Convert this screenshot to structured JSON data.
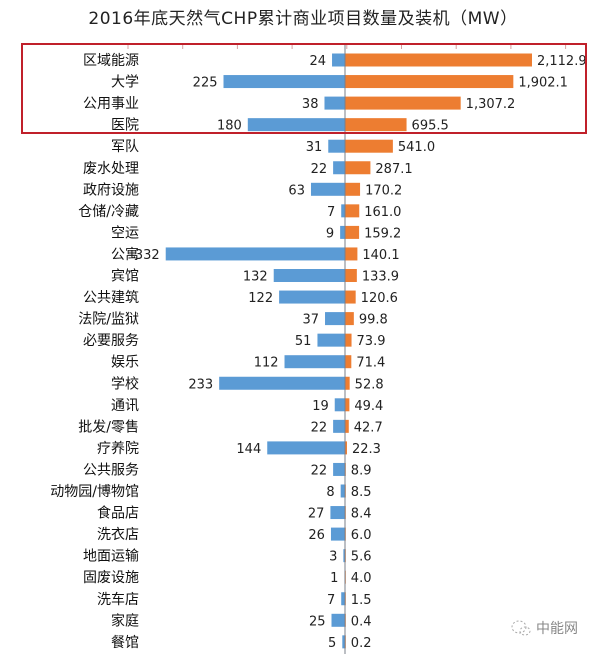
{
  "chart_data": {
    "type": "bar",
    "orientation": "horizontal-diverging",
    "title": "2016年底天然气CHP累计商业项目数量及装机（MW）",
    "categories": [
      "区域能源",
      "大学",
      "公用事业",
      "医院",
      "军队",
      "废水处理",
      "政府设施",
      "仓储/冷藏",
      "空运",
      "公寓",
      "宾馆",
      "公共建筑",
      "法院/监狱",
      "必要服务",
      "娱乐",
      "学校",
      "通讯",
      "批发/零售",
      "疗养院",
      "公共服务",
      "动物园/博物馆",
      "食品店",
      "洗衣店",
      "地面运输",
      "固废设施",
      "洗车店",
      "家庭",
      "餐馆"
    ],
    "series": [
      {
        "side": "left",
        "color": "#5b9bd5",
        "values": [
          24,
          225,
          38,
          180,
          31,
          22,
          63,
          7,
          9,
          332,
          132,
          122,
          37,
          51,
          112,
          233,
          19,
          22,
          144,
          22,
          8,
          27,
          26,
          3,
          1,
          7,
          25,
          5
        ],
        "labels": [
          "24",
          "225",
          "38",
          "180",
          "31",
          "22",
          "63",
          "7",
          "9",
          "332",
          "132",
          "122",
          "37",
          "51",
          "112",
          "233",
          "19",
          "22",
          "144",
          "22",
          "8",
          "27",
          "26",
          "3",
          "1",
          "7",
          "25",
          "5"
        ]
      },
      {
        "side": "right",
        "color": "#ed7d31",
        "values": [
          2112.9,
          1902.1,
          1307.2,
          695.5,
          541.0,
          287.1,
          170.2,
          161.0,
          159.2,
          140.1,
          133.9,
          120.6,
          99.8,
          73.9,
          71.4,
          52.8,
          49.4,
          42.7,
          22.3,
          8.9,
          8.5,
          8.4,
          6.0,
          5.6,
          4.0,
          1.5,
          0.4,
          0.2
        ],
        "labels": [
          "2,112.9",
          "1,902.1",
          "1,307.2",
          "695.5",
          "541.0",
          "287.1",
          "170.2",
          "161.0",
          "159.2",
          "140.1",
          "133.9",
          "120.6",
          "99.8",
          "73.9",
          "71.4",
          "52.8",
          "49.4",
          "42.7",
          "22.3",
          "8.9",
          "8.5",
          "8.4",
          "6.0",
          "5.6",
          "4.0",
          "1.5",
          "0.4",
          "0.2"
        ]
      }
    ],
    "highlight": {
      "color": "#c0202a",
      "rows": [
        "区域能源",
        "大学",
        "公用事业",
        "医院"
      ]
    },
    "grid": false
  },
  "watermark": {
    "text": "中能网",
    "icon": "wechat-icon"
  }
}
